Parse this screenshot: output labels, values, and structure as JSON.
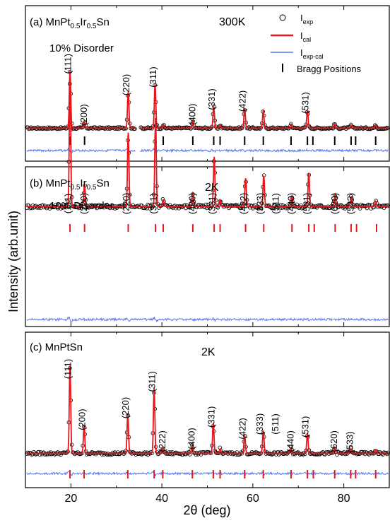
{
  "figure": {
    "ylabel": "Intensity (arb.unit)",
    "xlabel": "2θ (deg)"
  },
  "legend": {
    "exp": "I",
    "exp_sub": "exp",
    "cal": "I",
    "cal_sub": "cal",
    "diff": "I",
    "diff_sub": "exp-cal",
    "bragg": "Bragg Positions"
  },
  "colors": {
    "exp": "#000000",
    "cal": "#e8151b",
    "diff": "#5b79e8",
    "bragg_a": "#000000",
    "bragg_bc": "#e8151b"
  },
  "panels": [
    {
      "label_pre": "(a) MnPt",
      "sub1": "0.5",
      "label_mid": "Ir",
      "sub2": "0.5",
      "label_post": "Sn",
      "temperature": "300K",
      "note": "10% Disorder"
    },
    {
      "label_pre": "(b) MnPt",
      "sub1": "0.5",
      "label_mid": "Ir",
      "sub2": "0.5",
      "label_post": "Sn",
      "temperature": "2K",
      "note": "10% Disorder"
    },
    {
      "label_pre": "(c) MnPtSn",
      "sub1": "",
      "label_mid": "",
      "sub2": "",
      "label_post": "",
      "temperature": "2K",
      "note": ""
    }
  ],
  "chart_data": {
    "type": "line",
    "xlim": [
      10,
      90
    ],
    "x_ticks": [
      20,
      40,
      60,
      80
    ],
    "panels": [
      {
        "peaks": [
          {
            "pos": 19.8,
            "height": 0.95,
            "hkl": "(111)"
          },
          {
            "pos": 23.0,
            "height": 0.1,
            "hkl": "(200)"
          },
          {
            "pos": 32.6,
            "height": 0.6,
            "hkl": "(220)"
          },
          {
            "pos": 38.5,
            "height": 0.73,
            "hkl": "(311)"
          },
          {
            "pos": 40.3,
            "height": 0.05,
            "hkl": ""
          },
          {
            "pos": 46.8,
            "height": 0.11,
            "hkl": "(400)"
          },
          {
            "pos": 51.4,
            "height": 0.36,
            "hkl": "(331)"
          },
          {
            "pos": 52.8,
            "height": 0.05,
            "hkl": ""
          },
          {
            "pos": 58.2,
            "height": 0.33,
            "hkl": "(422)"
          },
          {
            "pos": 62.3,
            "height": 0.29,
            "hkl": ""
          },
          {
            "pos": 68.4,
            "height": 0.07,
            "hkl": ""
          },
          {
            "pos": 72.0,
            "height": 0.3,
            "hkl": "(531)"
          },
          {
            "pos": 78.0,
            "height": 0.07,
            "hkl": ""
          },
          {
            "pos": 81.6,
            "height": 0.05,
            "hkl": ""
          },
          {
            "pos": 87.0,
            "height": 0.05,
            "hkl": ""
          }
        ],
        "bragg": [
          19.8,
          23.0,
          32.6,
          38.5,
          40.3,
          46.8,
          51.4,
          52.8,
          58.2,
          62.3,
          68.4,
          72.0,
          73.2,
          78.0,
          81.6,
          82.6,
          87.0
        ],
        "gap": [
          34.2,
          35.2
        ]
      },
      {
        "peaks": [
          {
            "pos": 19.8,
            "height": 0.95,
            "hkl": "(111)"
          },
          {
            "pos": 23.0,
            "height": 0.16,
            "hkl": "(200)"
          },
          {
            "pos": 32.6,
            "height": 0.55,
            "hkl": "(220)"
          },
          {
            "pos": 38.6,
            "height": 0.66,
            "hkl": "(311)"
          },
          {
            "pos": 40.3,
            "height": 0.05,
            "hkl": ""
          },
          {
            "pos": 46.8,
            "height": 0.1,
            "hkl": "(400)"
          },
          {
            "pos": 51.5,
            "height": 0.37,
            "hkl": "(331)"
          },
          {
            "pos": 52.8,
            "height": 0.05,
            "hkl": ""
          },
          {
            "pos": 58.4,
            "height": 0.21,
            "hkl": "(422)"
          },
          {
            "pos": 62.4,
            "height": 0.23,
            "hkl": "(333) (511)"
          },
          {
            "pos": 68.6,
            "height": 0.08,
            "hkl": "(440)"
          },
          {
            "pos": 72.3,
            "height": 0.25,
            "hkl": "(531)"
          },
          {
            "pos": 78.1,
            "height": 0.09,
            "hkl": "(620)"
          },
          {
            "pos": 81.6,
            "height": 0.07,
            "hkl": "(533)"
          },
          {
            "pos": 87.0,
            "height": 0.04,
            "hkl": ""
          }
        ],
        "bragg": [
          19.8,
          23.0,
          32.6,
          38.6,
          40.3,
          46.8,
          51.5,
          52.8,
          58.4,
          62.4,
          68.6,
          72.3,
          73.5,
          78.1,
          81.6,
          82.8,
          87.2
        ],
        "gap": []
      },
      {
        "peaks": [
          {
            "pos": 19.8,
            "height": 0.97,
            "hkl": "(111)"
          },
          {
            "pos": 22.9,
            "height": 0.3,
            "hkl": "(200)"
          },
          {
            "pos": 32.5,
            "height": 0.43,
            "hkl": "(220)"
          },
          {
            "pos": 38.3,
            "height": 0.72,
            "hkl": "(311)"
          },
          {
            "pos": 40.2,
            "height": 0.06,
            "hkl": "(222)"
          },
          {
            "pos": 46.7,
            "height": 0.09,
            "hkl": "(400)"
          },
          {
            "pos": 51.3,
            "height": 0.33,
            "hkl": "(331)"
          },
          {
            "pos": 52.8,
            "height": 0.05,
            "hkl": ""
          },
          {
            "pos": 58.2,
            "height": 0.2,
            "hkl": "(422)"
          },
          {
            "pos": 62.3,
            "height": 0.25,
            "hkl": "(333) (511)"
          },
          {
            "pos": 68.4,
            "height": 0.06,
            "hkl": "(440)"
          },
          {
            "pos": 72.0,
            "height": 0.22,
            "hkl": "(531)"
          },
          {
            "pos": 78.0,
            "height": 0.06,
            "hkl": "(620)"
          },
          {
            "pos": 81.5,
            "height": 0.05,
            "hkl": "(533)"
          },
          {
            "pos": 87.0,
            "height": 0.04,
            "hkl": ""
          }
        ],
        "bragg": [
          19.8,
          22.9,
          32.5,
          38.3,
          40.2,
          46.7,
          51.3,
          52.8,
          58.2,
          62.3,
          68.4,
          72.0,
          73.3,
          78.0,
          81.5,
          82.6,
          87.0
        ],
        "gap": []
      }
    ]
  }
}
